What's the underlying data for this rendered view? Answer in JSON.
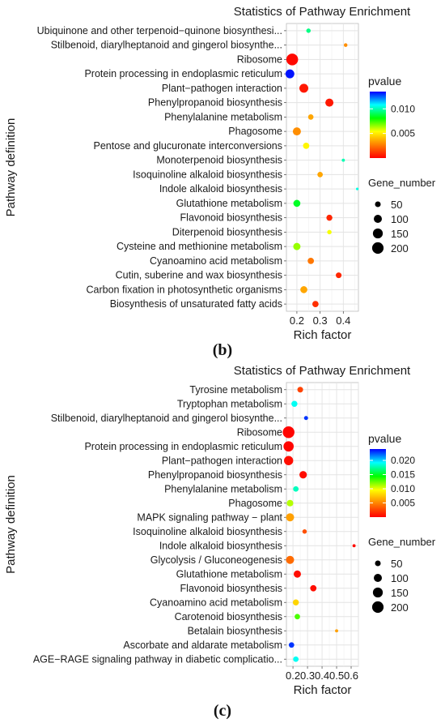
{
  "chart_data": [
    {
      "type": "scatter",
      "title": "Statistics of Pathway Enrichment",
      "xlabel": "Rich factor",
      "ylabel": "Pathway definition",
      "xlim": [
        0.155,
        0.465
      ],
      "xticks": [
        0.2,
        0.3,
        0.4
      ],
      "xtick_labels": [
        "0.2",
        "0.3",
        "0.4"
      ],
      "grid": true,
      "legend_position": "right",
      "color_legend": {
        "title": "pvalue",
        "ticks": [
          "0.010",
          "0.005"
        ],
        "tick_values": [
          0.01,
          0.005
        ],
        "range": [
          0,
          0.0135
        ],
        "colors": [
          "#ff0000",
          "#ff8000",
          "#ffff00",
          "#00ff00",
          "#00ffff",
          "#0000ff"
        ]
      },
      "size_legend": {
        "title": "Gene_number",
        "values": [
          50,
          100,
          150,
          200
        ],
        "labels": [
          "50",
          "100",
          "150",
          "200"
        ]
      },
      "categories": [
        "Ubiquinone and other terpenoid−quinone biosynthesi...",
        "Stilbenoid, diarylheptanoid and gingerol biosynthe...",
        "Ribosome",
        "Protein processing in endoplasmic reticulum",
        "Plant−pathogen interaction",
        "Phenylpropanoid biosynthesis",
        "Phenylalanine metabolism",
        "Phagosome",
        "Pentose and glucuronate interconversions",
        "Monoterpenoid biosynthesis",
        "Isoquinoline alkaloid biosynthesis",
        "Indole alkaloid biosynthesis",
        "Glutathione metabolism",
        "Flavonoid biosynthesis",
        "Diterpenoid biosynthesis",
        "Cysteine and methionine metabolism",
        "Cyanoamino acid metabolism",
        "Cutin, suberine and wax biosynthesis",
        "Carbon fixation in photosynthetic organisms",
        "Biosynthesis of unsaturated fatty acids"
      ],
      "points": [
        {
          "x": 0.25,
          "gene_number": 30,
          "pvalue": 0.0095
        },
        {
          "x": 0.41,
          "gene_number": 20,
          "pvalue": 0.003
        },
        {
          "x": 0.18,
          "gene_number": 210,
          "pvalue": 0.0002
        },
        {
          "x": 0.17,
          "gene_number": 120,
          "pvalue": 0.0133
        },
        {
          "x": 0.23,
          "gene_number": 120,
          "pvalue": 0.0005
        },
        {
          "x": 0.34,
          "gene_number": 100,
          "pvalue": 0.0005
        },
        {
          "x": 0.26,
          "gene_number": 45,
          "pvalue": 0.0035
        },
        {
          "x": 0.2,
          "gene_number": 100,
          "pvalue": 0.003
        },
        {
          "x": 0.24,
          "gene_number": 60,
          "pvalue": 0.0052
        },
        {
          "x": 0.4,
          "gene_number": 15,
          "pvalue": 0.01
        },
        {
          "x": 0.3,
          "gene_number": 45,
          "pvalue": 0.0035
        },
        {
          "x": 0.46,
          "gene_number": 10,
          "pvalue": 0.0105
        },
        {
          "x": 0.2,
          "gene_number": 75,
          "pvalue": 0.0085
        },
        {
          "x": 0.34,
          "gene_number": 55,
          "pvalue": 0.0008
        },
        {
          "x": 0.34,
          "gene_number": 30,
          "pvalue": 0.0055
        },
        {
          "x": 0.2,
          "gene_number": 80,
          "pvalue": 0.0065
        },
        {
          "x": 0.26,
          "gene_number": 60,
          "pvalue": 0.0025
        },
        {
          "x": 0.38,
          "gene_number": 50,
          "pvalue": 0.0008
        },
        {
          "x": 0.23,
          "gene_number": 75,
          "pvalue": 0.0035
        },
        {
          "x": 0.28,
          "gene_number": 60,
          "pvalue": 0.001
        }
      ]
    },
    {
      "type": "scatter",
      "title": "Statistics of Pathway Enrichment",
      "xlabel": "Rich factor",
      "ylabel": "Pathway definition",
      "xlim": [
        0.155,
        0.65
      ],
      "xticks": [
        0.2,
        0.3,
        0.4,
        0.5,
        0.6
      ],
      "xtick_labels": [
        "0.2",
        "0.3",
        "0.4",
        "0.5",
        "0.6"
      ],
      "grid": true,
      "legend_position": "right",
      "color_legend": {
        "title": "pvalue",
        "ticks": [
          "0.020",
          "0.015",
          "0.010",
          "0.005"
        ],
        "tick_values": [
          0.02,
          0.015,
          0.01,
          0.005
        ],
        "range": [
          0,
          0.024
        ],
        "colors": [
          "#ff0000",
          "#ff8000",
          "#ffff00",
          "#00ff00",
          "#00ffff",
          "#0000ff"
        ]
      },
      "size_legend": {
        "title": "Gene_number",
        "values": [
          50,
          100,
          150,
          200
        ],
        "labels": [
          "50",
          "100",
          "150",
          "200"
        ]
      },
      "categories": [
        "Tyrosine metabolism",
        "Tryptophan metabolism",
        "Stilbenoid, diarylheptanoid and gingerol biosynthe...",
        "Ribosome",
        "Protein processing in endoplasmic reticulum",
        "Plant−pathogen interaction",
        "Phenylpropanoid biosynthesis",
        "Phenylalanine metabolism",
        "Phagosome",
        "MAPK signaling pathway − plant",
        "Isoquinoline alkaloid biosynthesis",
        "Indole alkaloid biosynthesis",
        "Glycolysis / Gluconeogenesis",
        "Glutathione metabolism",
        "Flavonoid biosynthesis",
        "Cyanoamino acid metabolism",
        "Carotenoid biosynthesis",
        "Betalain biosynthesis",
        "Ascorbate and aldarate metabolism",
        "AGE−RAGE signaling pathway in diabetic complicatio..."
      ],
      "points": [
        {
          "x": 0.25,
          "gene_number": 50,
          "pvalue": 0.0025
        },
        {
          "x": 0.21,
          "gene_number": 55,
          "pvalue": 0.019
        },
        {
          "x": 0.29,
          "gene_number": 25,
          "pvalue": 0.023
        },
        {
          "x": 0.17,
          "gene_number": 210,
          "pvalue": 0.0002
        },
        {
          "x": 0.17,
          "gene_number": 160,
          "pvalue": 0.0002
        },
        {
          "x": 0.17,
          "gene_number": 130,
          "pvalue": 0.0005
        },
        {
          "x": 0.27,
          "gene_number": 85,
          "pvalue": 0.0005
        },
        {
          "x": 0.22,
          "gene_number": 45,
          "pvalue": 0.018
        },
        {
          "x": 0.18,
          "gene_number": 65,
          "pvalue": 0.011
        },
        {
          "x": 0.18,
          "gene_number": 100,
          "pvalue": 0.006
        },
        {
          "x": 0.28,
          "gene_number": 30,
          "pvalue": 0.003
        },
        {
          "x": 0.62,
          "gene_number": 15,
          "pvalue": 0.0005
        },
        {
          "x": 0.18,
          "gene_number": 100,
          "pvalue": 0.004
        },
        {
          "x": 0.23,
          "gene_number": 80,
          "pvalue": 0.0005
        },
        {
          "x": 0.34,
          "gene_number": 60,
          "pvalue": 0.0005
        },
        {
          "x": 0.22,
          "gene_number": 55,
          "pvalue": 0.008
        },
        {
          "x": 0.23,
          "gene_number": 45,
          "pvalue": 0.013
        },
        {
          "x": 0.5,
          "gene_number": 15,
          "pvalue": 0.006
        },
        {
          "x": 0.19,
          "gene_number": 45,
          "pvalue": 0.023
        },
        {
          "x": 0.22,
          "gene_number": 45,
          "pvalue": 0.019
        }
      ]
    }
  ],
  "captions": [
    "(b)",
    "(c)"
  ]
}
